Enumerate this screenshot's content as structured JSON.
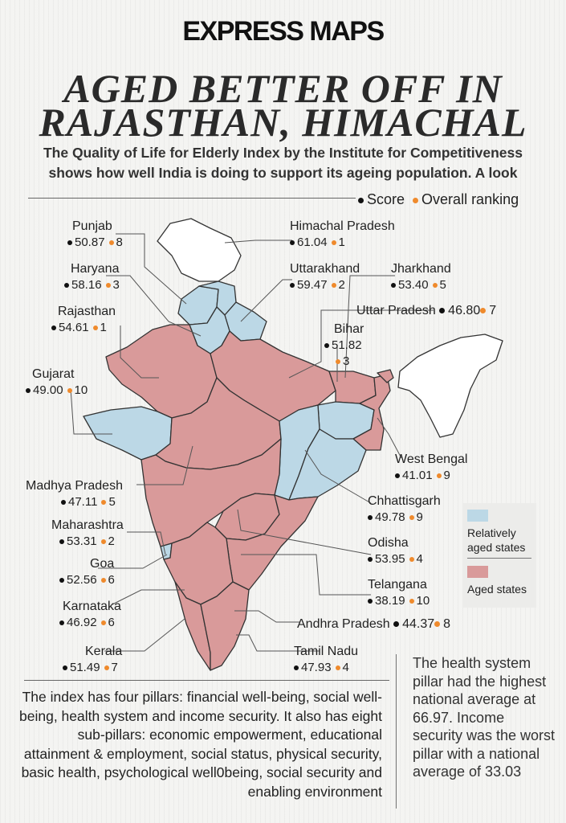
{
  "header": {
    "logo_ex": "EX",
    "logo_rest": "PRESS MAPS",
    "title_line1": "AGED BETTER OFF IN",
    "title_line2": "RAJASTHAN, HIMACHAL",
    "subtitle": "The Quality of Life for Elderly Index by the Institute for Competitiveness shows how well India is doing to support its ageing population. A look"
  },
  "legend": {
    "score": "Score",
    "ranking": "Overall ranking"
  },
  "key": {
    "relatively_aged": "Relatively aged states",
    "aged": "Aged states",
    "colors": {
      "relatively_aged": "#bcd8e6",
      "aged": "#d99a9a",
      "other": "#ffffff",
      "score_dot": "#111111",
      "rank_dot": "#ef8a2c"
    }
  },
  "states": [
    {
      "name": "Punjab",
      "score": "50.87",
      "rank": "8"
    },
    {
      "name": "Himachal Pradesh",
      "score": "61.04",
      "rank": "1"
    },
    {
      "name": "Haryana",
      "score": "58.16",
      "rank": "3"
    },
    {
      "name": "Uttarakhand",
      "score": "59.47",
      "rank": "2"
    },
    {
      "name": "Jharkhand",
      "score": "53.40",
      "rank": "5"
    },
    {
      "name": "Rajasthan",
      "score": "54.61",
      "rank": "1"
    },
    {
      "name": "Uttar Pradesh",
      "score": "46.80",
      "rank": "7"
    },
    {
      "name": "Bihar",
      "score": "51.82",
      "rank": "3"
    },
    {
      "name": "Gujarat",
      "score": "49.00",
      "rank": "10"
    },
    {
      "name": "West Bengal",
      "score": "41.01",
      "rank": "9"
    },
    {
      "name": "Madhya Pradesh",
      "score": "47.11",
      "rank": "5"
    },
    {
      "name": "Chhattisgarh",
      "score": "49.78",
      "rank": "9"
    },
    {
      "name": "Maharashtra",
      "score": "53.31",
      "rank": "2"
    },
    {
      "name": "Odisha",
      "score": "53.95",
      "rank": "4"
    },
    {
      "name": "Goa",
      "score": "52.56",
      "rank": "6"
    },
    {
      "name": "Telangana",
      "score": "38.19",
      "rank": "10"
    },
    {
      "name": "Karnataka",
      "score": "46.92",
      "rank": "6"
    },
    {
      "name": "Andhra Pradesh",
      "score": "44.37",
      "rank": "8"
    },
    {
      "name": "Kerala",
      "score": "51.49",
      "rank": "7"
    },
    {
      "name": "Tamil Nadu",
      "score": "47.93",
      "rank": "4"
    }
  ],
  "notes": {
    "pillars": "The index has four pillars: financial well-being, social well-being, health system and income security. It also has eight sub-pillars: economic empowerment, educational attainment & employment, social status, physical security, basic health, psychological well0being, social security and enabling environment",
    "health": "The health system pillar had the highest national average at 66.97. Income security was the worst pillar with a national average of 33.03"
  }
}
